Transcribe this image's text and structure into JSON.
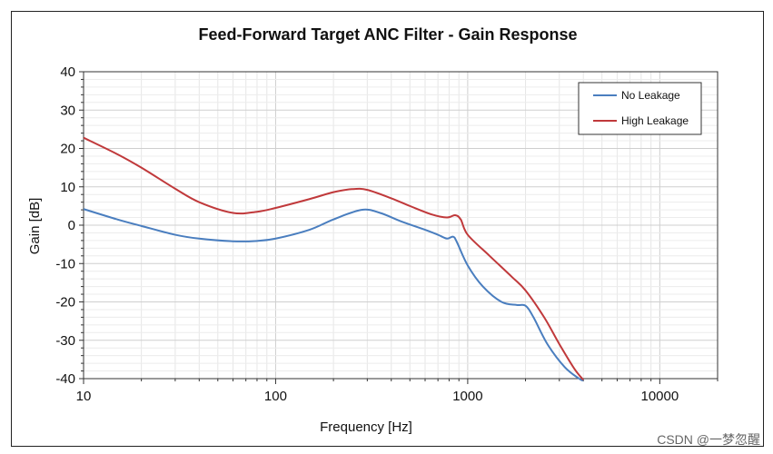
{
  "chart_data": {
    "type": "line",
    "title": "Feed-Forward Target ANC Filter - Gain Response",
    "xlabel": "Frequency [Hz]",
    "ylabel": "Gain [dB]",
    "xscale": "log",
    "xlim": [
      10,
      20000
    ],
    "ylim": [
      -40,
      40
    ],
    "xticks": [
      10,
      100,
      1000,
      10000
    ],
    "xtick_labels": [
      "10",
      "100",
      "1000",
      "10000"
    ],
    "yticks": [
      -40,
      -30,
      -20,
      -10,
      0,
      10,
      20,
      30,
      40
    ],
    "ytick_labels": [
      "-40",
      "-30",
      "-20",
      "-10",
      "0",
      "10",
      "20",
      "30",
      "40"
    ],
    "grid": true,
    "legend": "top-right",
    "series": [
      {
        "name": "No Leakage",
        "color": "#4a7ebf",
        "x": [
          10,
          15,
          20,
          30,
          40,
          60,
          80,
          100,
          150,
          200,
          280,
          350,
          450,
          600,
          700,
          780,
          840,
          880,
          1000,
          1200,
          1500,
          1800,
          2000,
          2200,
          2600,
          3200,
          3800,
          4000
        ],
        "y": [
          4.2,
          1.5,
          -0.2,
          -2.5,
          -3.5,
          -4.2,
          -4.1,
          -3.5,
          -1.2,
          1.5,
          4.0,
          3.2,
          1.0,
          -1.2,
          -2.5,
          -3.5,
          -3.0,
          -4.5,
          -10.5,
          -16.0,
          -20.0,
          -20.8,
          -21.0,
          -24.0,
          -31.0,
          -37.0,
          -40.0,
          -40.5
        ]
      },
      {
        "name": "High Leakage",
        "color": "#c0393b",
        "x": [
          10,
          15,
          20,
          30,
          40,
          60,
          80,
          100,
          150,
          200,
          250,
          300,
          400,
          500,
          650,
          780,
          860,
          920,
          1000,
          1300,
          1700,
          2000,
          2500,
          3000,
          3600,
          4000
        ],
        "y": [
          22.8,
          18.5,
          15.0,
          9.5,
          6.0,
          3.2,
          3.5,
          4.5,
          6.8,
          8.6,
          9.4,
          9.2,
          7.0,
          5.0,
          2.8,
          2.0,
          2.6,
          1.5,
          -2.5,
          -8.0,
          -13.5,
          -17.0,
          -24.0,
          -31.0,
          -37.5,
          -40.3
        ]
      }
    ]
  },
  "watermark": "CSDN @一梦忽醒"
}
